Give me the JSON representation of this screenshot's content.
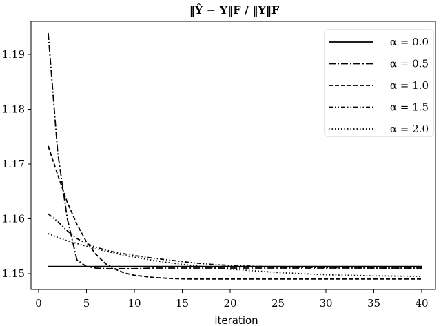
{
  "chart_data": {
    "type": "line",
    "title": "‖Ŷ − Y‖F / ‖Y‖F",
    "xlabel": "iteration",
    "ylabel": "",
    "xlim": [
      -1,
      41.5
    ],
    "ylim": [
      1.1466,
      1.1955
    ],
    "xticks": [
      0,
      5,
      10,
      15,
      20,
      25,
      30,
      35,
      40
    ],
    "yticks": [
      1.15,
      1.16,
      1.17,
      1.18,
      1.19
    ],
    "ytick_labels": [
      "1.15",
      "1.16",
      "1.17",
      "1.18",
      "1.19"
    ],
    "xtick_labels": [
      "0",
      "5",
      "10",
      "15",
      "20",
      "25",
      "30",
      "35",
      "40"
    ],
    "grid": false,
    "legend_position": "upper right",
    "x": [
      1,
      2,
      3,
      4,
      5,
      6,
      7,
      8,
      9,
      10,
      12,
      14,
      16,
      18,
      20,
      25,
      30,
      35,
      40
    ],
    "series": [
      {
        "name": "α = 0.0",
        "dash": "solid",
        "values": [
          1.1513,
          1.1513,
          1.1513,
          1.1513,
          1.1513,
          1.1513,
          1.1513,
          1.1513,
          1.1513,
          1.1513,
          1.1513,
          1.1513,
          1.1513,
          1.1513,
          1.1513,
          1.1513,
          1.1513,
          1.1513,
          1.1513
        ]
      },
      {
        "name": "α = 0.5",
        "dash": "dashdot",
        "values": [
          1.1939,
          1.172,
          1.16,
          1.1525,
          1.1513,
          1.151,
          1.1509,
          1.1509,
          1.1509,
          1.1509,
          1.151,
          1.151,
          1.151,
          1.151,
          1.151,
          1.151,
          1.151,
          1.151,
          1.151
        ]
      },
      {
        "name": "α = 1.0",
        "dash": "dashed",
        "values": [
          1.1733,
          1.168,
          1.163,
          1.159,
          1.1558,
          1.1535,
          1.1518,
          1.1508,
          1.1501,
          1.1497,
          1.1493,
          1.1491,
          1.149,
          1.149,
          1.149,
          1.149,
          1.149,
          1.149,
          1.149
        ]
      },
      {
        "name": "α = 1.5",
        "dash": "dashdotdot",
        "values": [
          1.1609,
          1.1595,
          1.1578,
          1.1564,
          1.1555,
          1.1548,
          1.1543,
          1.1539,
          1.1536,
          1.1533,
          1.1528,
          1.1524,
          1.152,
          1.1517,
          1.1515,
          1.1512,
          1.1511,
          1.151,
          1.151
        ]
      },
      {
        "name": "α = 2.0",
        "dash": "dotted",
        "values": [
          1.1573,
          1.1566,
          1.156,
          1.1555,
          1.155,
          1.1545,
          1.1541,
          1.1537,
          1.1533,
          1.153,
          1.1524,
          1.1519,
          1.1515,
          1.1511,
          1.1508,
          1.1502,
          1.1498,
          1.1496,
          1.1495
        ]
      }
    ]
  },
  "legend": {
    "items": [
      {
        "label": "α = 0.0",
        "dash": ""
      },
      {
        "label": "α = 0.5",
        "dash": "10 3 2 3"
      },
      {
        "label": "α = 1.0",
        "dash": "6 3"
      },
      {
        "label": "α = 1.5",
        "dash": "6 3 1.5 3 1.5 3"
      },
      {
        "label": "α = 2.0",
        "dash": "1.5 3"
      }
    ]
  }
}
